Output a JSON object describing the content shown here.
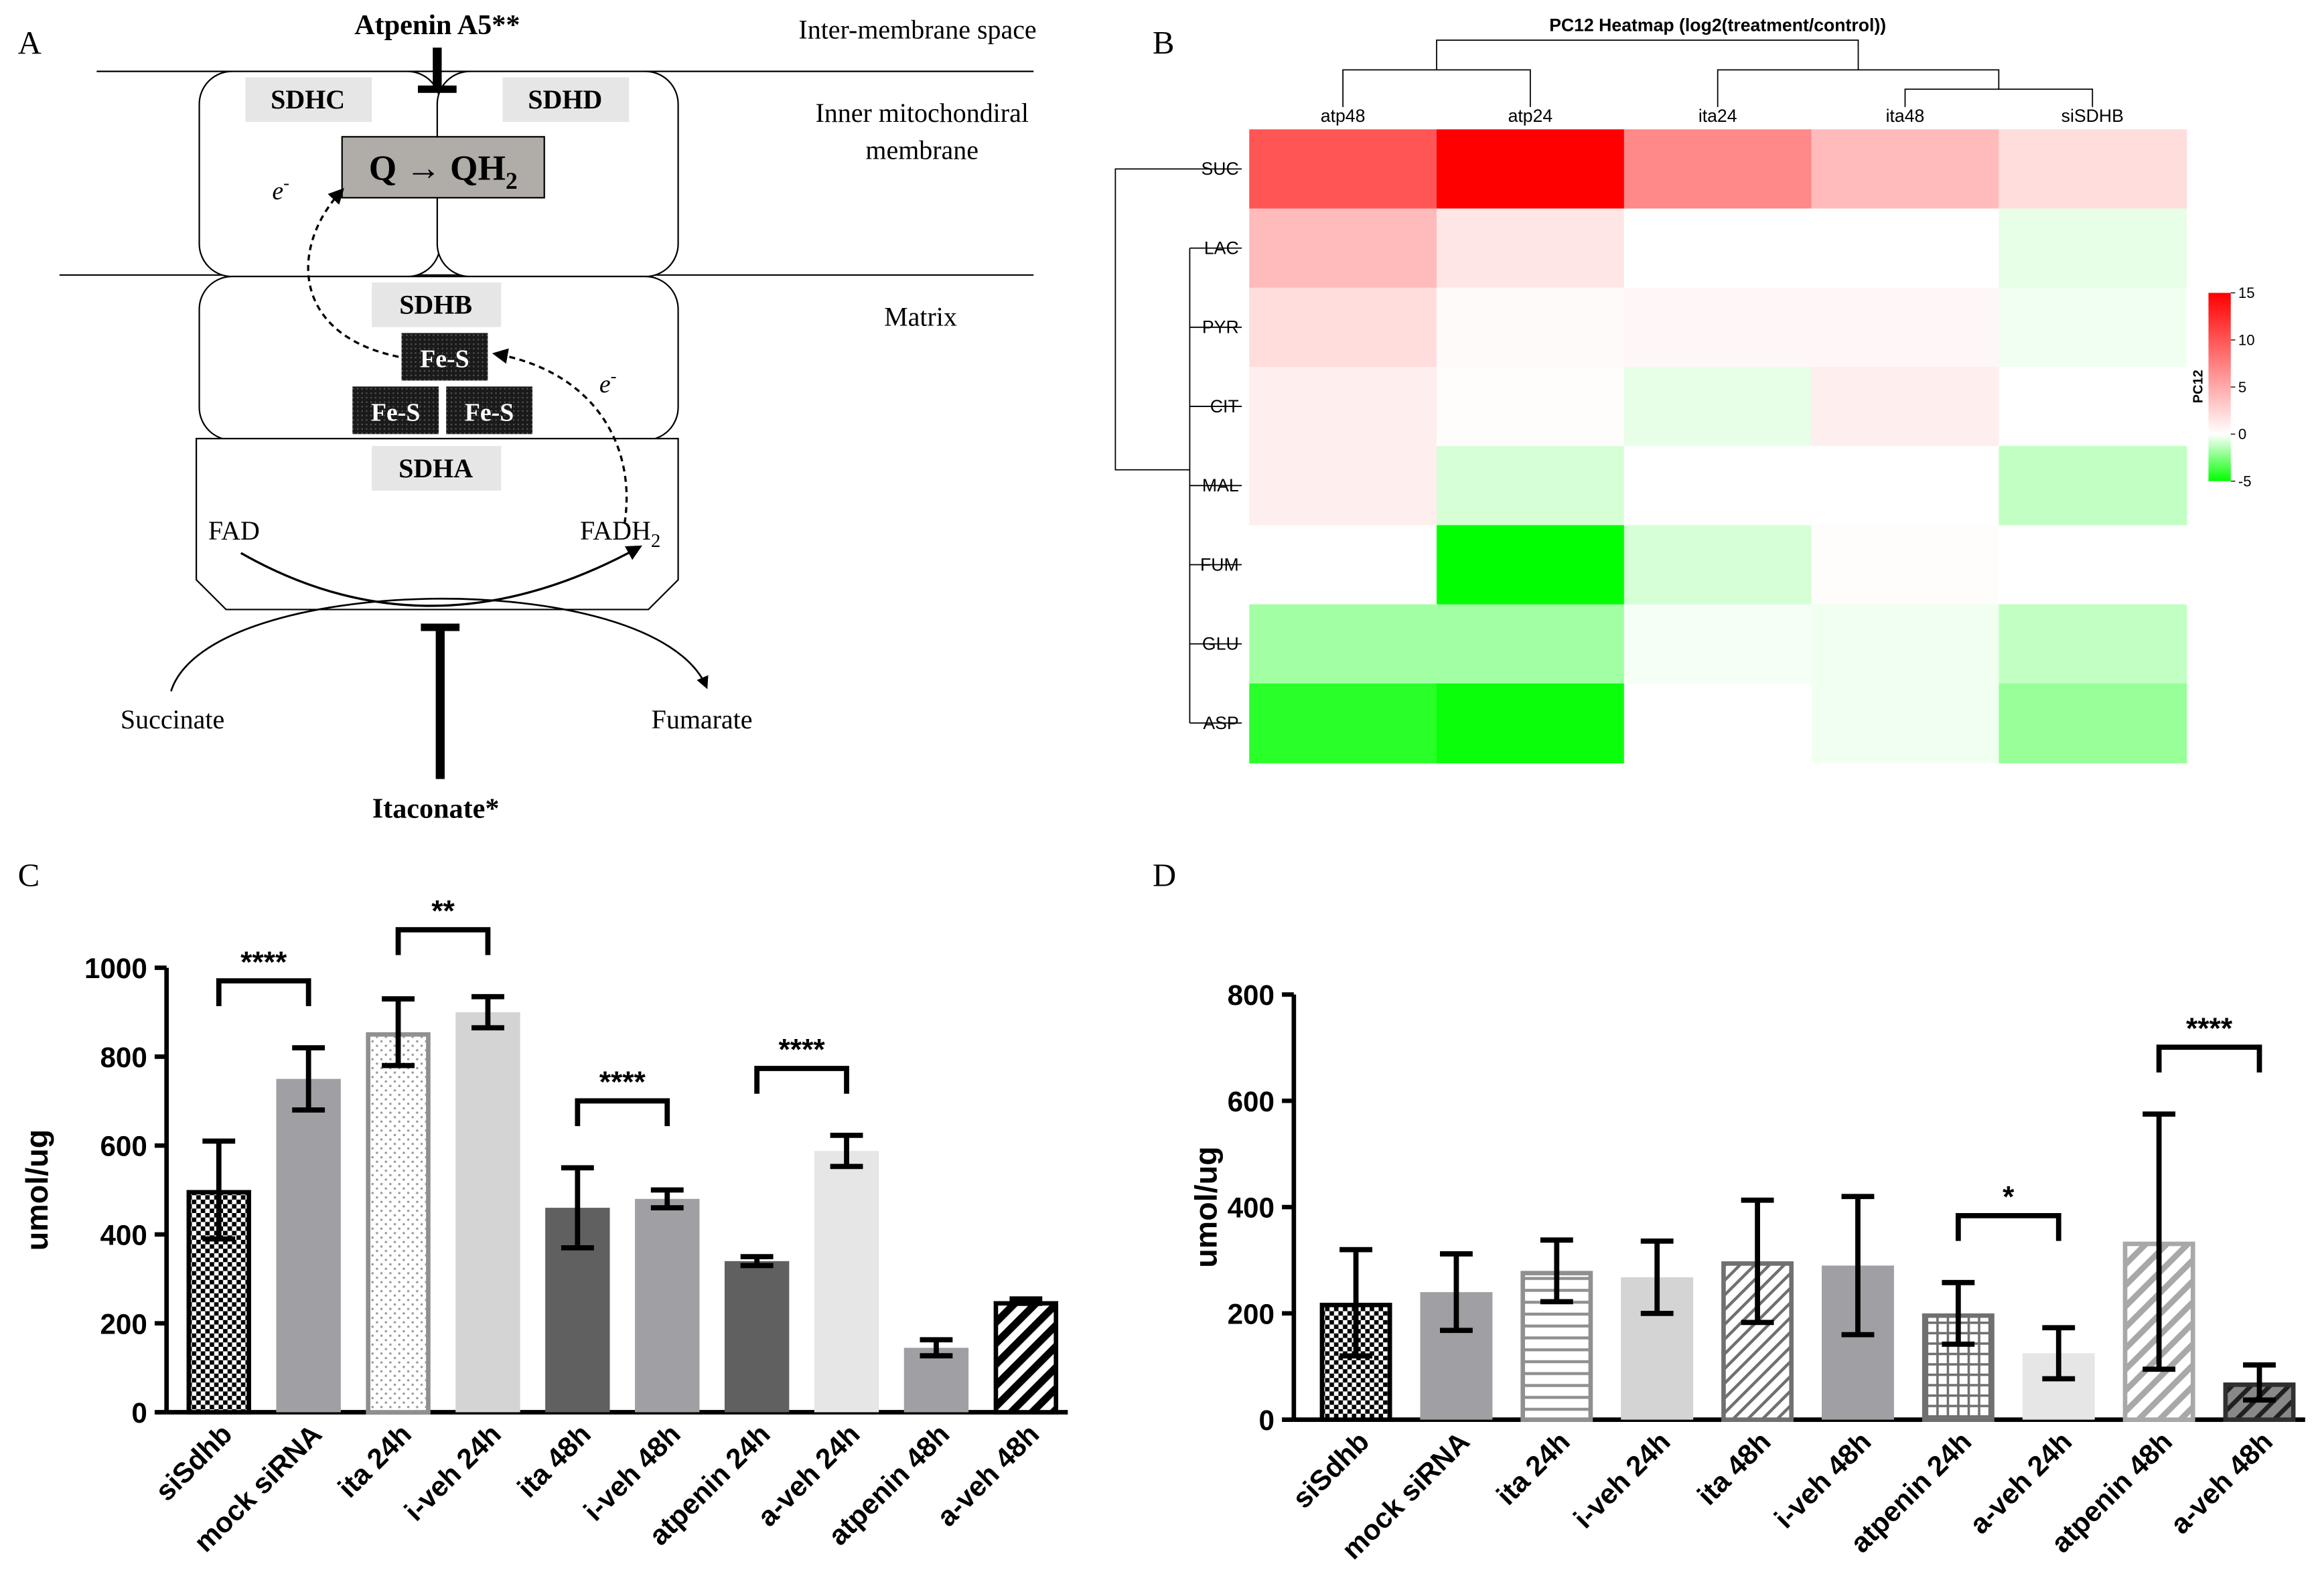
{
  "diagram": {
    "label": "A",
    "inhibitor_top": "Atpenin A5**",
    "inhibitor_bottom": "Itaconate*",
    "regions": [
      "Inter-membrane space",
      "Inner mitochondiral",
      "membrane",
      "Matrix"
    ],
    "subunits": {
      "sdhc": "SDHC",
      "sdhd": "SDHD",
      "sdhb": "SDHB",
      "sdha": "SDHA"
    },
    "reaction": {
      "text": "Q → QH",
      "sub": "2"
    },
    "electron": {
      "text": "e",
      "sup": "-"
    },
    "clusters": [
      "Fe-S",
      "Fe-S",
      "Fe-S"
    ],
    "cofactor": "FAD",
    "cofactor_reduced": {
      "text": "FADH",
      "sub": "2"
    },
    "substrate": "Succinate",
    "product": "Fumarate"
  },
  "chart_data": [
    {
      "type": "heatmap",
      "label": "B",
      "title": "PC12  Heatmap (log2(treatment/control))",
      "columns": [
        "atp48",
        "atp24",
        "ita24",
        "ita48",
        "siSDHB"
      ],
      "rows": [
        "SUC",
        "LAC",
        "PYR",
        "CIT",
        "MAL",
        "FUM",
        "GLU",
        "ASP"
      ],
      "values": [
        [
          10,
          15,
          7,
          4,
          2
        ],
        [
          4,
          1.5,
          0,
          0,
          -0.5
        ],
        [
          2,
          0.3,
          0.5,
          0.5,
          -0.3
        ],
        [
          1,
          0.2,
          -0.5,
          1,
          0
        ],
        [
          1,
          -0.8,
          0,
          0,
          -1.2
        ],
        [
          0,
          -5,
          -0.8,
          0.2,
          0
        ],
        [
          -1.8,
          -1.8,
          -0.2,
          -0.3,
          -1.2
        ],
        [
          -4.2,
          -4.8,
          0,
          -0.3,
          -2
        ]
      ],
      "colorbar_label": "PC12",
      "clim": [
        -5,
        15
      ],
      "cticks": [
        15,
        10,
        5,
        0,
        -5
      ],
      "colors": {
        "low": "#00ff00",
        "mid": "#ffffff",
        "high": "#ff0000"
      }
    },
    {
      "type": "bar",
      "label": "C",
      "ylabel": "umol/ug",
      "categories": [
        "siSdhb",
        "mock siRNA",
        "ita 24h",
        "i-veh 24h",
        "ita 48h",
        "i-veh 48h",
        "atpenin 24h",
        "a-veh 24h",
        "atpenin 48h",
        "a-veh 48h"
      ],
      "values": [
        500,
        750,
        855,
        900,
        460,
        480,
        340,
        588,
        145,
        250
      ],
      "errors": [
        110,
        70,
        75,
        35,
        90,
        20,
        10,
        35,
        18,
        5
      ],
      "colors": [
        "#000000",
        "#a0a0a4",
        "#909090",
        "#d4d4d4",
        "#606060",
        "#a0a0a4",
        "#606060",
        "#e6e6e6",
        "#a0a0a4",
        "#000000"
      ],
      "patterns": [
        "checker",
        null,
        "dots",
        null,
        null,
        null,
        null,
        null,
        null,
        "hatch"
      ],
      "ylim": [
        0,
        1000
      ],
      "yticks": [
        0,
        200,
        400,
        600,
        800,
        1000
      ],
      "significance": [
        {
          "between": [
            "siSdhb",
            "mock siRNA"
          ],
          "label": "****"
        },
        {
          "between": [
            "ita 24h",
            "i-veh 24h"
          ],
          "label": "**"
        },
        {
          "between": [
            "ita 48h",
            "i-veh 48h"
          ],
          "label": "****"
        },
        {
          "between": [
            "atpenin 24h",
            "a-veh 24h"
          ],
          "label": "****"
        }
      ]
    },
    {
      "type": "bar",
      "label": "D",
      "ylabel": "umol/ug",
      "categories": [
        "siSdhb",
        "mock siRNA",
        "ita 24h",
        "i-veh 24h",
        "ita 48h",
        "i-veh 48h",
        "atpenin 24h",
        "a-veh 24h",
        "atpenin 48h",
        "a-veh 48h"
      ],
      "values": [
        220,
        240,
        280,
        268,
        298,
        290,
        200,
        125,
        335,
        70
      ],
      "errors": [
        100,
        72,
        58,
        68,
        115,
        130,
        58,
        48,
        240,
        33
      ],
      "colors": [
        "#000000",
        "#a0a0a4",
        "#909090",
        "#d4d4d4",
        "#707070",
        "#a0a0a4",
        "#707070",
        "#e6e6e6",
        "#a8a8a8",
        "#303030"
      ],
      "patterns": [
        "checker",
        null,
        "hlines",
        null,
        "hatchgray",
        null,
        "grid",
        null,
        "hatchlight",
        "hatchdark"
      ],
      "ylim": [
        0,
        800
      ],
      "yticks": [
        0,
        200,
        400,
        600,
        800
      ],
      "significance": [
        {
          "between": [
            "atpenin 24h",
            "a-veh 24h"
          ],
          "label": "*"
        },
        {
          "between": [
            "atpenin 48h",
            "a-veh 48h"
          ],
          "label": "****"
        }
      ]
    }
  ]
}
